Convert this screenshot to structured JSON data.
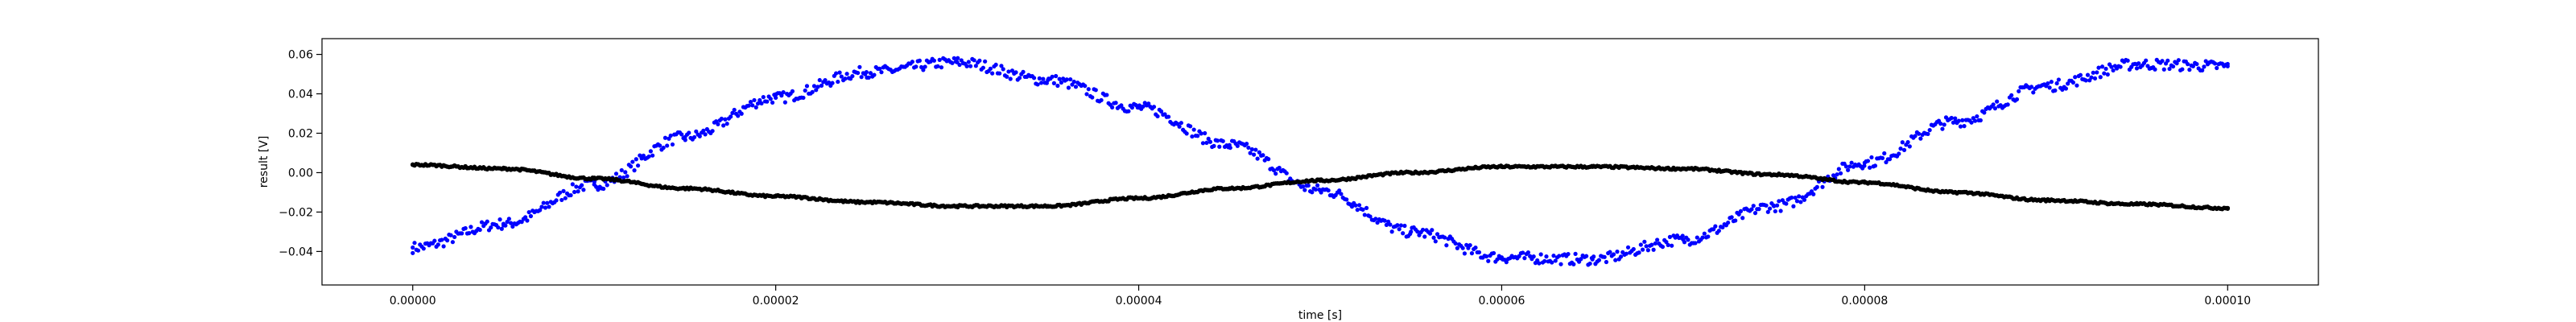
{
  "chart_data": {
    "type": "scatter",
    "title": "",
    "xlabel": "time [s]",
    "ylabel": "result [V]",
    "xlim": [
      -5e-06,
      0.000105
    ],
    "ylim": [
      -0.057,
      0.068
    ],
    "x_ticks": [
      0.0,
      2e-05,
      4e-05,
      6e-05,
      8e-05,
      0.0001
    ],
    "x_tick_labels": [
      "0.00000",
      "0.00002",
      "0.00004",
      "0.00006",
      "0.00008",
      "0.00010"
    ],
    "y_ticks": [
      -0.04,
      -0.02,
      0.0,
      0.02,
      0.04,
      0.06
    ],
    "y_tick_labels": [
      "−0.04",
      "−0.02",
      "0.00",
      "0.02",
      "0.04",
      "0.06"
    ],
    "grid": false,
    "legend": "none",
    "series": [
      {
        "color": "#0000ff",
        "marker": "dot",
        "x": [
          0.0,
          5e-06,
          1e-05,
          1.5e-05,
          2e-05,
          2.5e-05,
          3e-05,
          3.5e-05,
          4e-05,
          4.5e-05,
          5e-05,
          5.5e-05,
          6e-05,
          6.5e-05,
          7e-05,
          7.5e-05,
          8e-05,
          8.5e-05,
          9e-05,
          9.5e-05,
          0.0001
        ],
        "y": [
          -0.038,
          -0.026,
          -0.006,
          0.018,
          0.038,
          0.051,
          0.056,
          0.047,
          0.033,
          0.014,
          -0.009,
          -0.03,
          -0.043,
          -0.044,
          -0.034,
          -0.017,
          0.005,
          0.026,
          0.044,
          0.055,
          0.054
        ]
      },
      {
        "color": "#000000",
        "marker": "dot",
        "x": [
          0.0,
          5e-06,
          1e-05,
          1.5e-05,
          2e-05,
          2.5e-05,
          3e-05,
          3.5e-05,
          4e-05,
          4.5e-05,
          5e-05,
          5.5e-05,
          6e-05,
          6.5e-05,
          7e-05,
          7.5e-05,
          8e-05,
          8.5e-05,
          9e-05,
          9.5e-05,
          0.0001
        ],
        "y": [
          0.004,
          0.002,
          -0.003,
          -0.008,
          -0.012,
          -0.015,
          -0.017,
          -0.017,
          -0.013,
          -0.008,
          -0.004,
          0.0,
          0.003,
          0.003,
          0.002,
          -0.001,
          -0.005,
          -0.01,
          -0.014,
          -0.016,
          -0.018
        ]
      }
    ]
  }
}
